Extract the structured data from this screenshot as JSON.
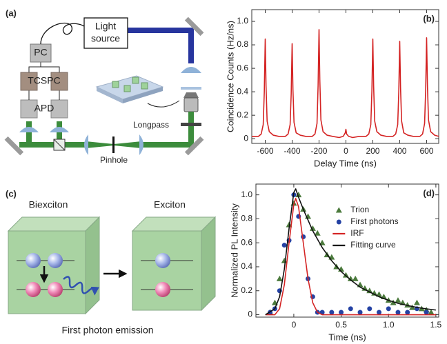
{
  "panel_a": {
    "label": "(a)",
    "light_source": [
      "Light",
      "source"
    ],
    "pc": "PC",
    "tcspc": "TCSPC",
    "apd": "APD",
    "longpass": "Longpass",
    "pinhole": "Pinhole"
  },
  "panel_c": {
    "label": "(c)",
    "biexciton": "Biexciton",
    "exciton": "Exciton",
    "caption": "First photon emission"
  },
  "chart_data": [
    {
      "type": "line",
      "label": "(b)",
      "xlabel": "Delay Time (ns)",
      "ylabel": "Coincidence Counts (Hz/ns)",
      "color": "#d42424",
      "x": [
        -700,
        -680,
        -650,
        -630,
        -615,
        -607,
        -600,
        -594,
        -586,
        -570,
        -540,
        -500,
        -450,
        -430,
        -415,
        -407,
        -400,
        -394,
        -386,
        -370,
        -340,
        -300,
        -250,
        -230,
        -215,
        -207,
        -200,
        -194,
        -186,
        -170,
        -140,
        -100,
        -50,
        -20,
        -5,
        0,
        5,
        20,
        50,
        100,
        150,
        170,
        185,
        193,
        200,
        206,
        214,
        230,
        260,
        300,
        350,
        370,
        385,
        393,
        400,
        406,
        414,
        430,
        460,
        500,
        550,
        570,
        585,
        593,
        600,
        606,
        614,
        630,
        660,
        690
      ],
      "values": [
        0.02,
        0.02,
        0.02,
        0.04,
        0.12,
        0.4,
        0.85,
        0.45,
        0.15,
        0.06,
        0.03,
        0.02,
        0.02,
        0.04,
        0.12,
        0.38,
        0.81,
        0.42,
        0.14,
        0.05,
        0.03,
        0.02,
        0.02,
        0.04,
        0.13,
        0.45,
        0.93,
        0.5,
        0.16,
        0.06,
        0.03,
        0.02,
        0.01,
        0.02,
        0.05,
        0.08,
        0.04,
        0.02,
        0.01,
        0.02,
        0.02,
        0.04,
        0.12,
        0.4,
        0.85,
        0.45,
        0.15,
        0.06,
        0.03,
        0.02,
        0.02,
        0.04,
        0.12,
        0.4,
        0.83,
        0.44,
        0.15,
        0.05,
        0.03,
        0.02,
        0.02,
        0.04,
        0.13,
        0.42,
        0.86,
        0.46,
        0.16,
        0.06,
        0.03,
        0.02
      ],
      "xlim": [
        -700,
        690
      ],
      "ylim": [
        -0.04,
        1.1
      ],
      "xticks": [
        -600,
        -400,
        -200,
        0,
        200,
        400,
        600
      ],
      "yticks": [
        0,
        0.2,
        0.4,
        0.6,
        0.8,
        {
          "value": 1,
          "label": "1.0"
        }
      ]
    },
    {
      "type": "scatter",
      "label": "(d)",
      "xlabel": "Time (ns)",
      "ylabel": "Normalized PL Intensity",
      "legend": "upper right",
      "xlim": [
        -0.4,
        1.53
      ],
      "ylim": [
        -0.02,
        1.09
      ],
      "xticks": [
        0,
        0.5,
        {
          "value": 1,
          "label": "1.0"
        },
        1.5
      ],
      "yticks": [
        0,
        0.2,
        0.4,
        0.6,
        0.8,
        {
          "value": 1,
          "label": "1.0"
        }
      ],
      "series": [
        {
          "name": "Trion",
          "type": "scatter",
          "marker": "triangle",
          "color": "#4b7a3c",
          "x": [
            -0.25,
            -0.2,
            -0.15,
            -0.1,
            -0.05,
            0,
            0.05,
            0.1,
            0.15,
            0.2,
            0.25,
            0.3,
            0.35,
            0.4,
            0.45,
            0.5,
            0.55,
            0.6,
            0.65,
            0.7,
            0.75,
            0.8,
            0.85,
            0.9,
            0.95,
            1,
            1.05,
            1.1,
            1.15,
            1.2,
            1.25,
            1.3,
            1.35,
            1.4,
            1.45
          ],
          "values": [
            0.02,
            0.1,
            0.3,
            0.45,
            0.75,
            0.93,
            1,
            0.88,
            0.82,
            0.72,
            0.68,
            0.6,
            0.5,
            0.48,
            0.4,
            0.38,
            0.33,
            0.3,
            0.3,
            0.25,
            0.22,
            0.2,
            0.18,
            0.17,
            0.15,
            0.12,
            0.1,
            0.12,
            0.1,
            0.08,
            0.06,
            0.1,
            0.05,
            0.04,
            0.02
          ]
        },
        {
          "name": "First photons",
          "type": "scatter",
          "marker": "circle",
          "color": "#2442a4",
          "x": [
            -0.25,
            -0.2,
            -0.15,
            -0.1,
            -0.05,
            0,
            0.05,
            0.1,
            0.15,
            0.2,
            0.25,
            0.3,
            0.4,
            0.5,
            0.6,
            0.7,
            0.8,
            0.9,
            1,
            1.1,
            1.2,
            1.3,
            1.4
          ],
          "values": [
            0.02,
            0.05,
            0.2,
            0.58,
            0.62,
            1,
            0.82,
            0.65,
            0.3,
            0.15,
            0.02,
            0.02,
            0.02,
            0.02,
            0.05,
            0.02,
            0.05,
            0.02,
            0.05,
            0.02,
            0.02,
            0.05,
            0.02
          ]
        },
        {
          "name": "IRF",
          "type": "line",
          "color": "#d42424",
          "x": [
            -0.3,
            -0.2,
            -0.15,
            -0.1,
            -0.05,
            0,
            0.02,
            0.05,
            0.1,
            0.15,
            0.2,
            0.25,
            0.3,
            1.5
          ],
          "values": [
            0,
            0,
            0.05,
            0.25,
            0.6,
            0.92,
            0.97,
            0.9,
            0.6,
            0.3,
            0.1,
            0.02,
            0,
            0
          ]
        },
        {
          "name": "Fitting curve",
          "type": "line",
          "color": "#111111",
          "x": [
            -0.3,
            -0.2,
            -0.15,
            -0.1,
            -0.05,
            0,
            0.02,
            0.05,
            0.1,
            0.15,
            0.2,
            0.3,
            0.4,
            0.5,
            0.6,
            0.7,
            0.8,
            0.9,
            1,
            1.1,
            1.2,
            1.3,
            1.4,
            1.5
          ],
          "values": [
            0,
            0.05,
            0.15,
            0.38,
            0.72,
            1.02,
            1.05,
            0.98,
            0.88,
            0.79,
            0.7,
            0.56,
            0.45,
            0.36,
            0.29,
            0.23,
            0.19,
            0.15,
            0.12,
            0.095,
            0.077,
            0.061,
            0.049,
            0.039
          ]
        }
      ]
    }
  ]
}
